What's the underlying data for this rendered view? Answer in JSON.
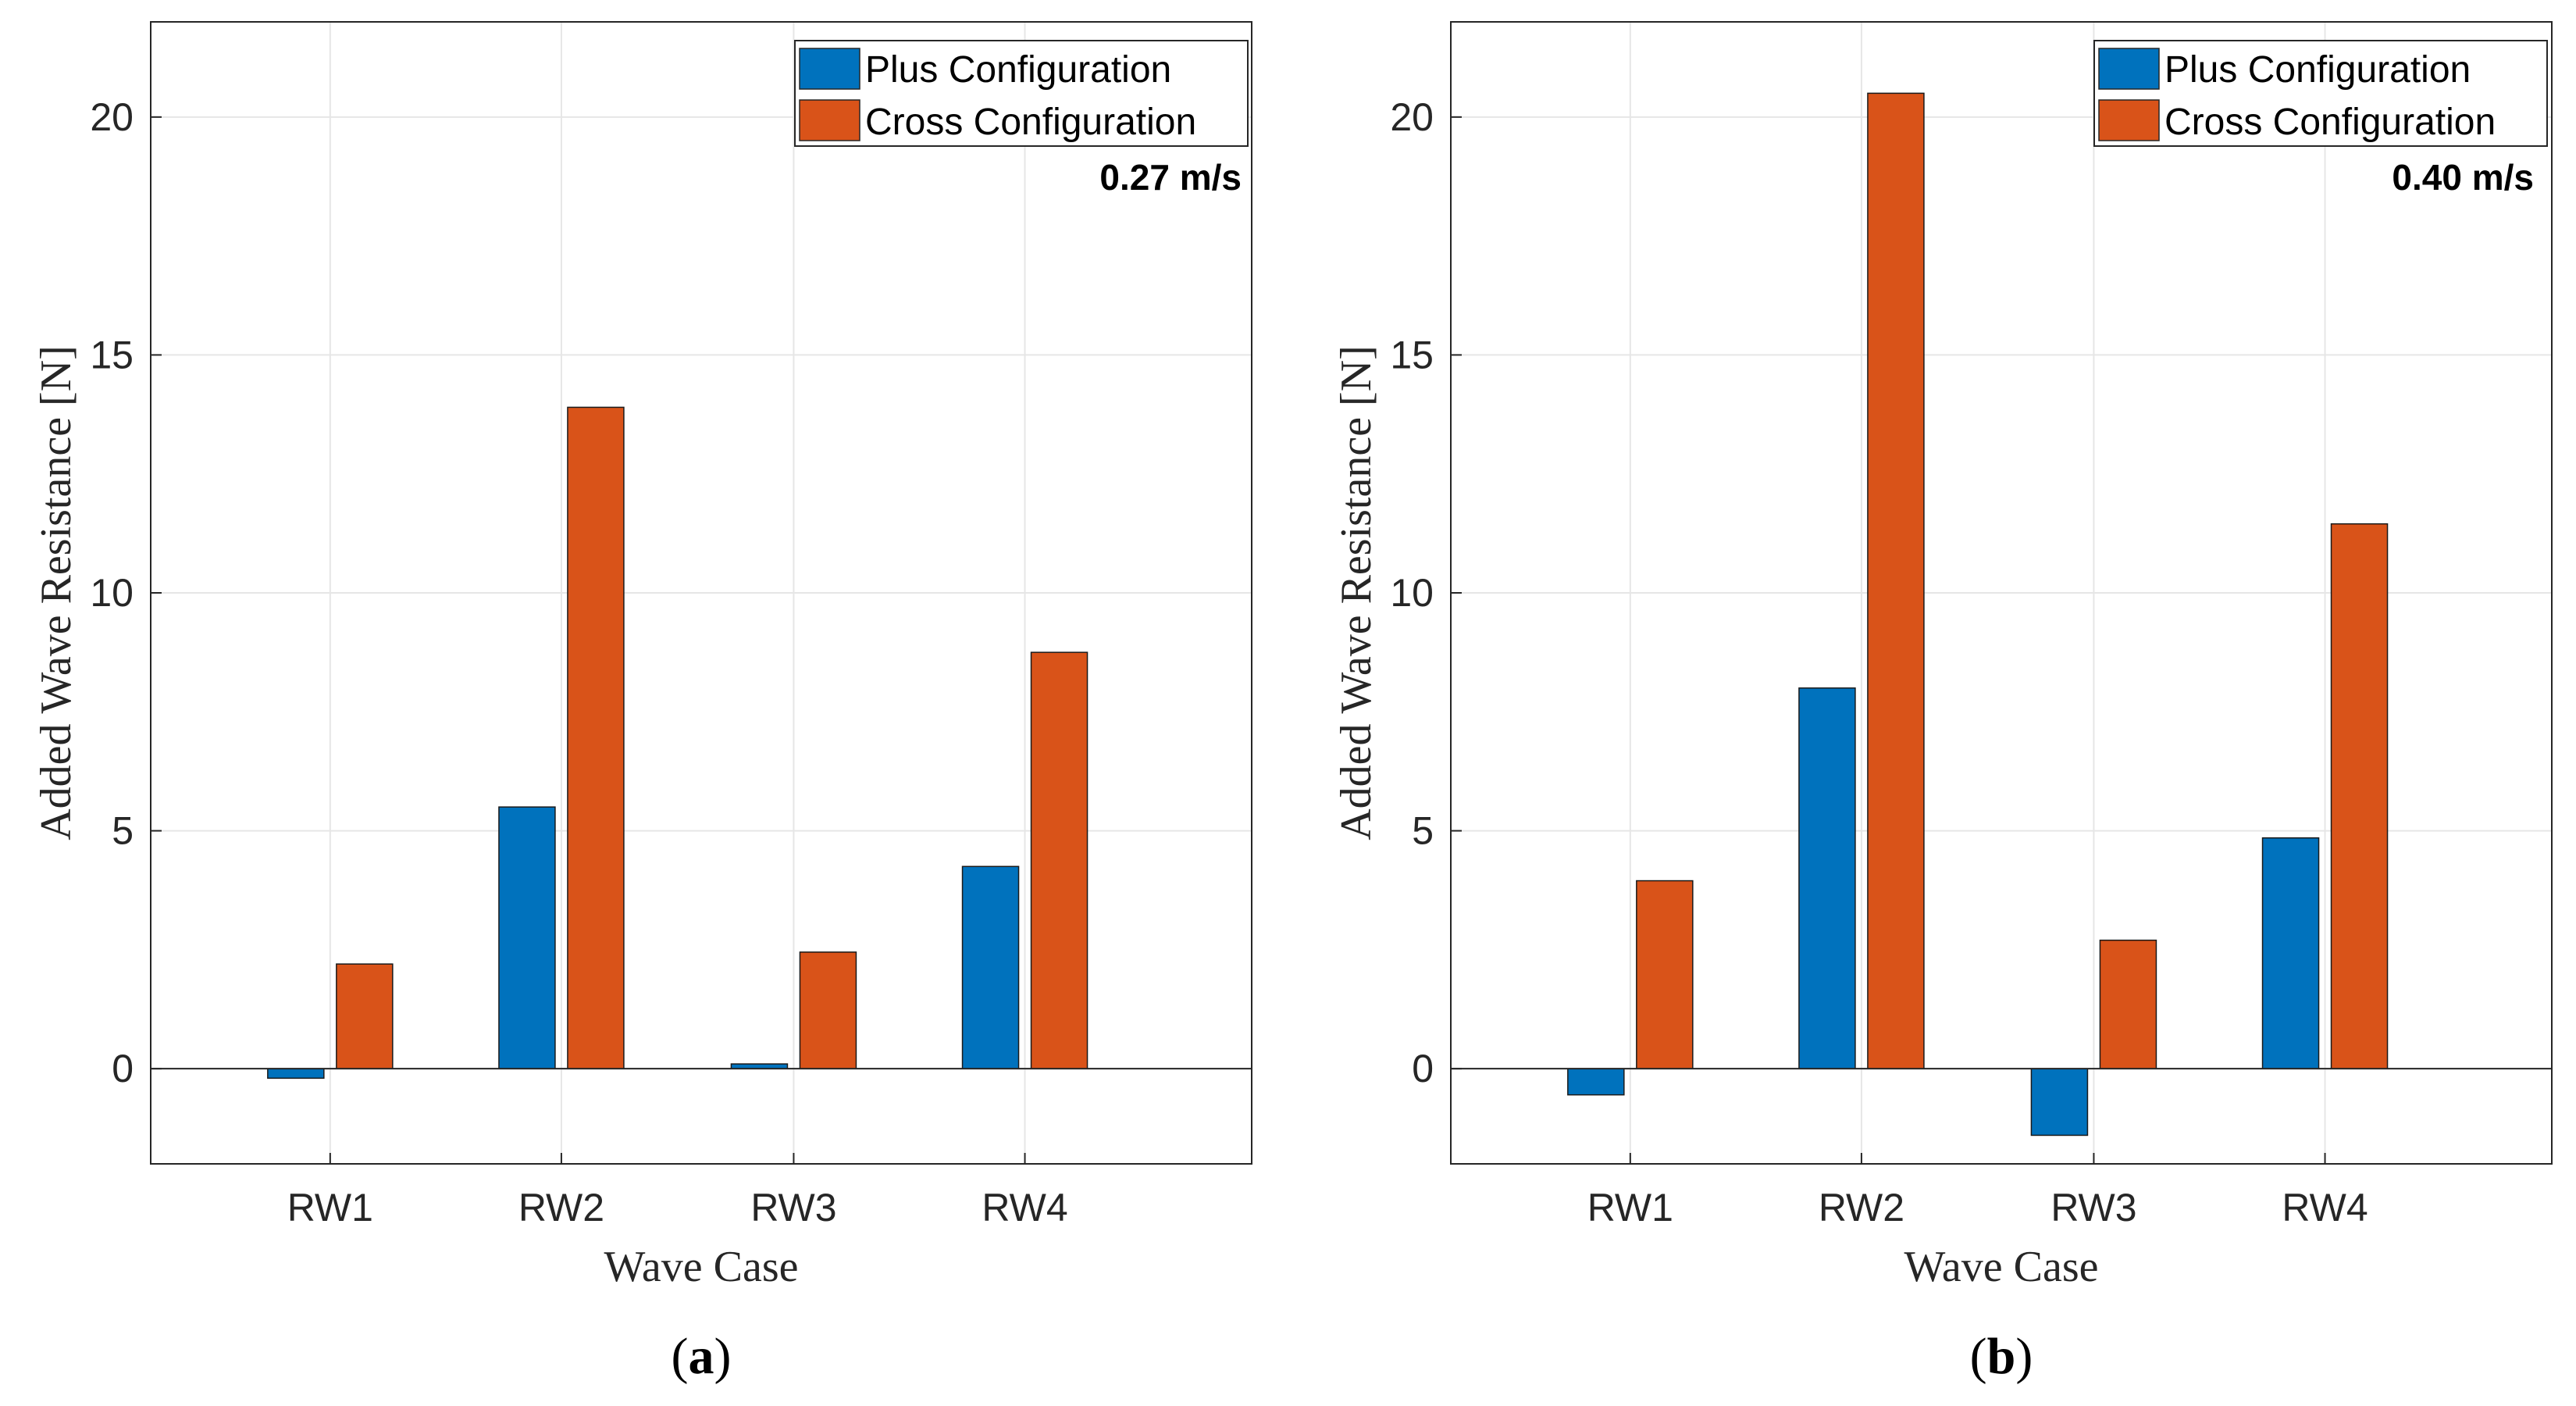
{
  "figure": {
    "series_names": [
      "Plus Configuration",
      "Cross Configuration"
    ],
    "series_colors": [
      "#0072BD",
      "#D95319"
    ]
  },
  "chart_data": [
    {
      "type": "bar",
      "panel": "(a)",
      "annotation": "0.27 m/s",
      "categories": [
        "RW1",
        "RW2",
        "RW3",
        "RW4"
      ],
      "series": [
        {
          "name": "Plus Configuration",
          "values": [
            -0.2,
            5.5,
            0.1,
            4.25
          ]
        },
        {
          "name": "Cross Configuration",
          "values": [
            2.2,
            13.9,
            2.45,
            8.75
          ]
        }
      ],
      "xlabel": "Wave Case",
      "ylabel": "Added Wave Resistance [N]",
      "ylim": [
        -2,
        22
      ],
      "yticks": [
        0,
        5,
        10,
        15,
        20
      ],
      "grid": true,
      "legend_position": "top-right"
    },
    {
      "type": "bar",
      "panel": "(b)",
      "annotation": "0.40 m/s",
      "categories": [
        "RW1",
        "RW2",
        "RW3",
        "RW4"
      ],
      "series": [
        {
          "name": "Plus Configuration",
          "values": [
            -0.55,
            8.0,
            -1.4,
            4.85
          ]
        },
        {
          "name": "Cross Configuration",
          "values": [
            3.95,
            20.5,
            2.7,
            11.45
          ]
        }
      ],
      "xlabel": "Wave Case",
      "ylabel": "Added Wave Resistance [N]",
      "ylim": [
        -2,
        22
      ],
      "yticks": [
        0,
        5,
        10,
        15,
        20
      ],
      "grid": true,
      "legend_position": "top-right"
    }
  ]
}
